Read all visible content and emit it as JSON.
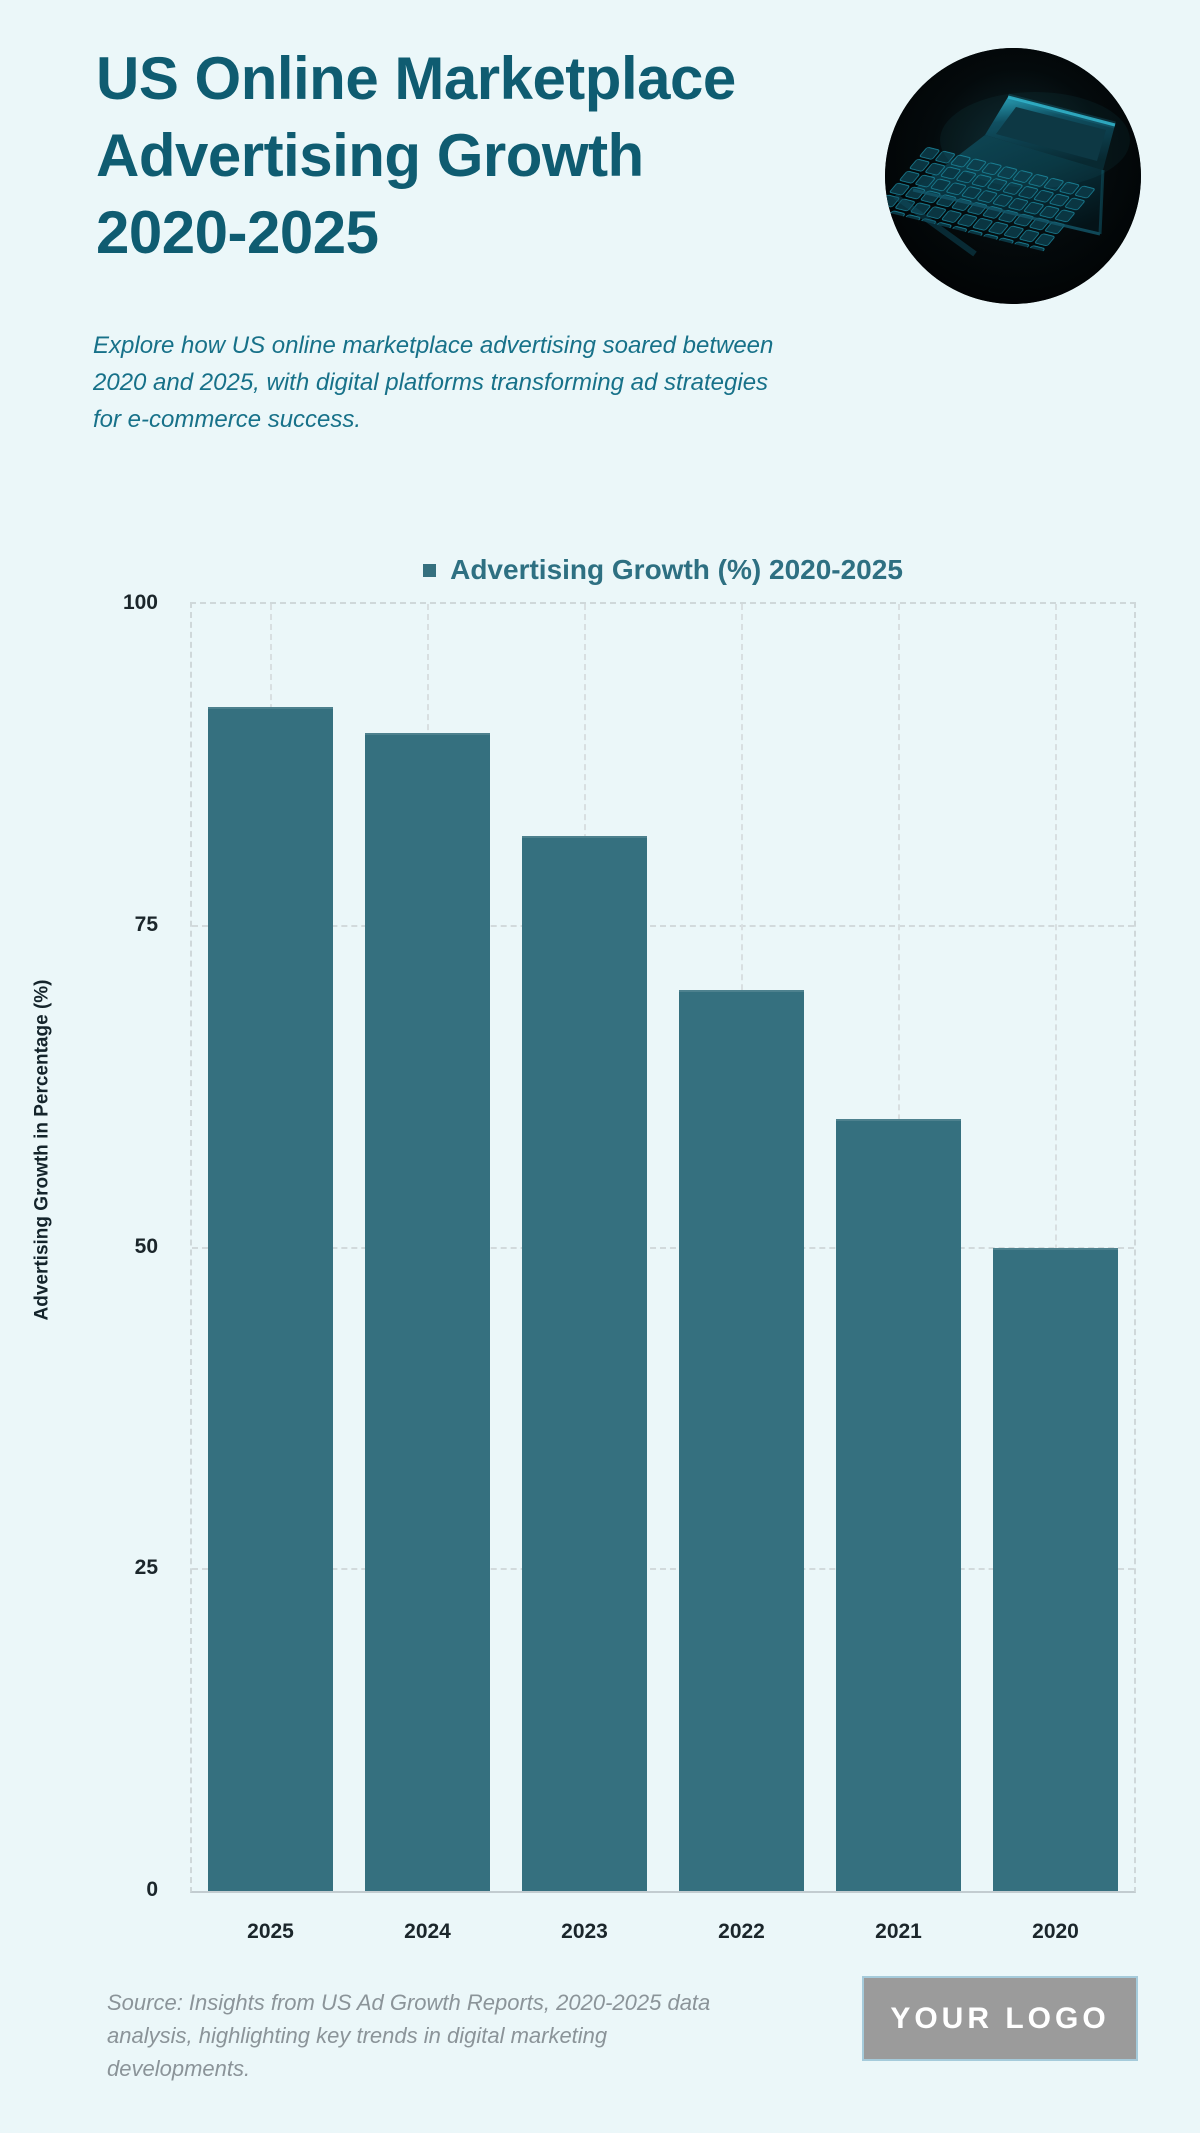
{
  "page": {
    "title_lines": [
      "US Online Marketplace",
      "Advertising Growth",
      "2020-2025"
    ],
    "subtitle_lines": [
      "Explore how US online marketplace advertising soared between",
      "2020 and 2025, with digital platforms transforming ad strategies",
      "for e-commerce success."
    ],
    "hero_image_name": "dark-laptop-keyboard-photo"
  },
  "chart_data": {
    "type": "bar",
    "title": "Advertising Growth (%) 2020-2025",
    "categories": [
      "2025",
      "2024",
      "2023",
      "2022",
      "2021",
      "2020"
    ],
    "values": [
      92,
      90,
      82,
      70,
      60,
      50
    ],
    "xlabel": "",
    "ylabel": "Advertising Growth in Percentage (%)",
    "ylim": [
      0,
      100
    ],
    "yticks": [
      0,
      25,
      50,
      75,
      100
    ],
    "grid": true,
    "legend_position": "top-center",
    "bar_color": "#35707f"
  },
  "footer": {
    "source_lines": [
      "Source: Insights from US Ad Growth Reports, 2020-2025 data",
      "analysis, highlighting key trends in digital marketing",
      "developments."
    ],
    "logo_text": "YOUR LOGO"
  },
  "colors": {
    "background": "#ebf7f9",
    "title": "#0f5c71",
    "subtitle": "#177189",
    "legend_text": "#2e7082",
    "bar": "#35707f",
    "tick_label": "#1b262b",
    "axis_title": "#14242b",
    "gridline": "#cfd8da",
    "axis_line": "#c2ccd0",
    "source_text": "#8b9499",
    "logo_background": "#9b9b9b",
    "logo_border": "#a5cbdb",
    "logo_text_color": "#ffffff"
  }
}
